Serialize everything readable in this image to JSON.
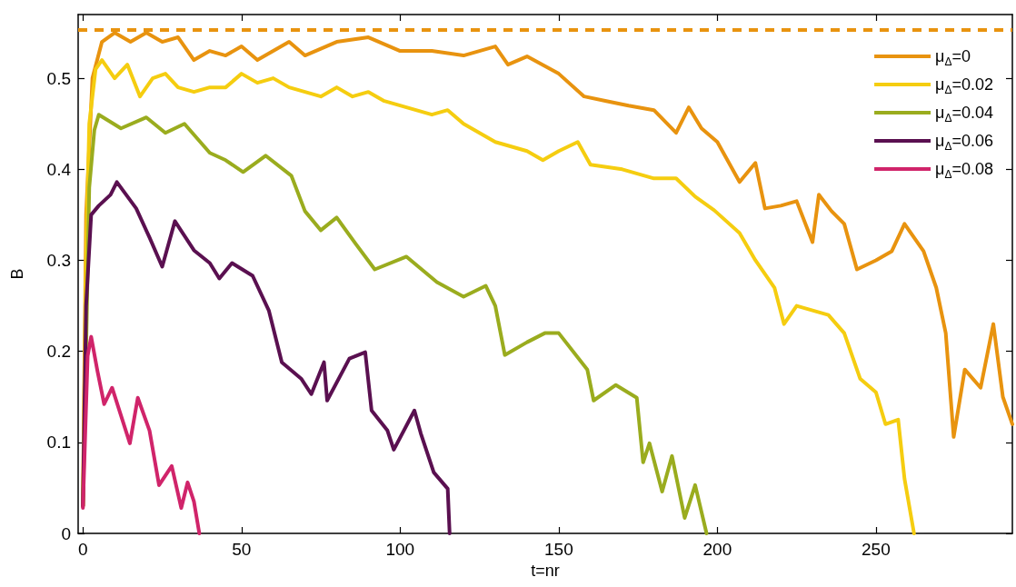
{
  "chart_data": {
    "type": "line",
    "xlabel": "t=nr",
    "ylabel": "B",
    "xlim": [
      -1.5,
      293
    ],
    "xticks": [
      0,
      50,
      100,
      150,
      200,
      250
    ],
    "ylim": [
      0,
      0.57
    ],
    "yticks": [
      0,
      0.1,
      0.2,
      0.3,
      0.4,
      0.5
    ],
    "grid": false,
    "legend": "top right",
    "marker": "none",
    "line_style": "solid",
    "ref_lines": [
      {
        "axis": "y",
        "value": 0.553,
        "label": null,
        "color": "#e8930f",
        "line_style": "dashed"
      }
    ],
    "series": [
      {
        "name": "μ$_{Δ}$=0",
        "color": "#e8930f",
        "x": [
          0,
          1,
          3,
          6,
          10,
          15,
          20,
          25,
          30,
          35,
          40,
          45,
          50,
          55,
          60,
          65,
          70,
          80,
          90,
          100,
          110,
          120,
          130,
          134,
          140,
          150,
          158,
          165,
          172,
          180,
          187,
          191,
          195,
          200,
          207,
          212,
          215,
          220,
          225,
          230,
          232,
          236,
          240,
          244,
          250,
          255,
          259,
          265,
          269,
          272,
          274.5,
          278,
          283,
          287,
          290,
          293
        ],
        "values": [
          0.03,
          0.35,
          0.5,
          0.54,
          0.55,
          0.54,
          0.55,
          0.54,
          0.545,
          0.52,
          0.53,
          0.525,
          0.535,
          0.52,
          0.53,
          0.54,
          0.525,
          0.54,
          0.545,
          0.53,
          0.53,
          0.525,
          0.535,
          0.515,
          0.524,
          0.505,
          0.48,
          0.475,
          0.47,
          0.465,
          0.44,
          0.468,
          0.445,
          0.43,
          0.386,
          0.407,
          0.357,
          0.36,
          0.365,
          0.32,
          0.372,
          0.354,
          0.34,
          0.29,
          0.3,
          0.31,
          0.34,
          0.31,
          0.27,
          0.22,
          0.106,
          0.18,
          0.16,
          0.23,
          0.15,
          0.12
        ]
      },
      {
        "name": "μ$_{Δ}$=0.02",
        "color": "#f5cd10",
        "x": [
          0,
          1,
          2,
          4,
          6,
          10,
          14,
          18,
          22,
          26,
          30,
          35,
          40,
          45,
          50,
          55,
          60,
          65,
          70,
          75,
          80,
          85,
          90,
          95,
          100,
          110,
          115,
          120,
          125,
          130,
          135,
          140,
          145,
          150,
          156,
          160,
          170,
          180,
          187,
          193,
          199,
          207,
          212,
          218,
          221,
          225,
          230,
          235,
          240,
          245,
          250,
          253,
          257,
          259,
          262
        ],
        "values": [
          0.03,
          0.3,
          0.45,
          0.51,
          0.52,
          0.5,
          0.515,
          0.48,
          0.5,
          0.505,
          0.49,
          0.485,
          0.49,
          0.49,
          0.505,
          0.495,
          0.5,
          0.49,
          0.485,
          0.48,
          0.49,
          0.48,
          0.485,
          0.475,
          0.47,
          0.46,
          0.465,
          0.45,
          0.44,
          0.43,
          0.425,
          0.42,
          0.41,
          0.42,
          0.43,
          0.405,
          0.4,
          0.39,
          0.39,
          0.37,
          0.355,
          0.33,
          0.3,
          0.27,
          0.23,
          0.25,
          0.245,
          0.24,
          0.22,
          0.17,
          0.155,
          0.12,
          0.125,
          0.06,
          0
        ]
      },
      {
        "name": "μ$_{Δ}$=0.04",
        "color": "#9aac1e",
        "x": [
          0,
          1,
          2,
          3.6,
          5,
          12,
          20,
          26,
          32,
          40,
          45,
          50.5,
          57.6,
          65.7,
          70,
          75,
          80,
          86,
          92,
          102,
          111.6,
          120,
          127,
          130,
          133,
          140,
          145.6,
          150,
          159,
          161,
          168,
          174.6,
          176.6,
          178.6,
          182.6,
          185.7,
          189.7,
          193,
          196.6
        ],
        "values": [
          0.03,
          0.2,
          0.38,
          0.443,
          0.46,
          0.445,
          0.457,
          0.44,
          0.45,
          0.418,
          0.41,
          0.397,
          0.415,
          0.393,
          0.354,
          0.333,
          0.347,
          0.318,
          0.29,
          0.304,
          0.276,
          0.26,
          0.272,
          0.25,
          0.196,
          0.21,
          0.22,
          0.22,
          0.18,
          0.146,
          0.163,
          0.149,
          0.078,
          0.099,
          0.046,
          0.085,
          0.017,
          0.053,
          0
        ]
      },
      {
        "name": "μ$_{Δ}$=0.06",
        "color": "#5a1050",
        "x": [
          0,
          1,
          2.6,
          5,
          8.7,
          10.7,
          16.8,
          21,
          25,
          29,
          35,
          40,
          43,
          47,
          53.5,
          58.6,
          62.7,
          68.8,
          72,
          76,
          77,
          84,
          89,
          91,
          96,
          98,
          104.5,
          106.5,
          110.6,
          115,
          115.6
        ],
        "values": [
          0.03,
          0.25,
          0.35,
          0.36,
          0.372,
          0.386,
          0.357,
          0.325,
          0.293,
          0.343,
          0.311,
          0.297,
          0.28,
          0.297,
          0.283,
          0.245,
          0.188,
          0.17,
          0.153,
          0.188,
          0.146,
          0.192,
          0.199,
          0.135,
          0.113,
          0.092,
          0.135,
          0.11,
          0.067,
          0.049,
          0
        ]
      },
      {
        "name": "μ$_{Δ}$=0.08",
        "color": "#d0246a",
        "x": [
          0,
          1.5,
          2.6,
          4.6,
          6.7,
          9.2,
          14.8,
          17.3,
          21,
          24,
          28,
          31,
          33,
          35,
          36.7
        ],
        "values": [
          0.028,
          0.195,
          0.216,
          0.178,
          0.142,
          0.16,
          0.099,
          0.149,
          0.113,
          0.053,
          0.074,
          0.028,
          0.056,
          0.035,
          0
        ]
      }
    ]
  }
}
